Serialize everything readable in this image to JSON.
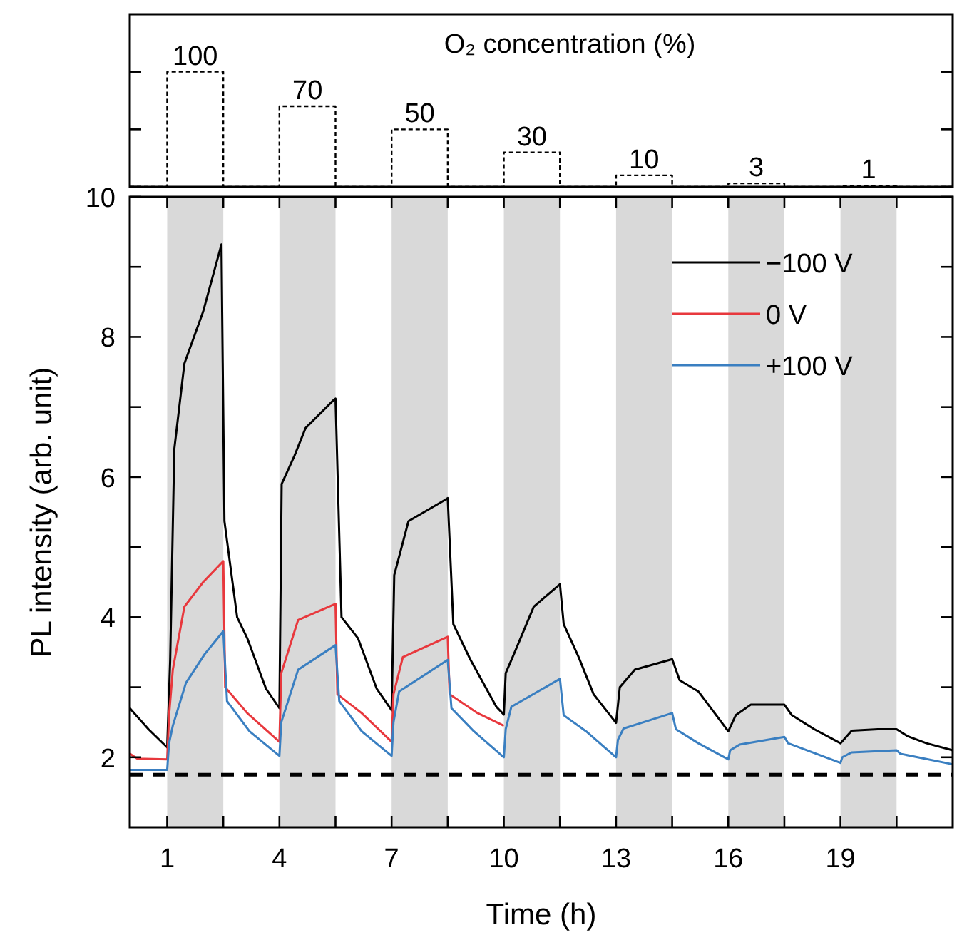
{
  "chart_data": [
    {
      "type": "step",
      "title": "O₂ concentration (%)",
      "x": [
        0,
        1,
        2.5,
        4,
        5.5,
        7,
        8.5,
        10,
        11.5,
        13,
        14.5,
        16,
        17.5,
        19,
        20.5,
        22
      ],
      "values": [
        0,
        100,
        0,
        70,
        0,
        50,
        0,
        30,
        0,
        10,
        0,
        3,
        0,
        1,
        0,
        0
      ],
      "value_labels": [
        null,
        "100",
        null,
        "70",
        null,
        "50",
        null,
        "30",
        null,
        "10",
        null,
        "3",
        null,
        "1",
        null,
        null
      ],
      "color": "#000000",
      "line_style": "dashed",
      "xlim": [
        0,
        22
      ],
      "ylim": [
        0,
        150
      ],
      "yticks": [
        {
          "value": 0,
          "label": null
        },
        {
          "value": 50,
          "label": null
        },
        {
          "value": 100,
          "label": null
        }
      ]
    },
    {
      "type": "line",
      "xlabel": "Time (h)",
      "ylabel": "PL intensity (arb. unit)",
      "xlim": [
        0,
        22
      ],
      "ylim": [
        1,
        10
      ],
      "xticks": [
        1,
        {
          "value": 2.5,
          "label": null
        },
        4,
        {
          "value": 5.5,
          "label": null
        },
        7,
        {
          "value": 8.5,
          "label": null
        },
        10,
        {
          "value": 11.5,
          "label": null
        },
        13,
        {
          "value": 14.5,
          "label": null
        },
        16,
        {
          "value": 17.5,
          "label": null
        },
        19,
        {
          "value": 20.5,
          "label": null
        }
      ],
      "yticks": [
        2,
        {
          "value": 3,
          "label": null
        },
        4,
        {
          "value": 5,
          "label": null
        },
        6,
        {
          "value": 7,
          "label": null
        },
        8,
        {
          "value": 9,
          "label": null
        },
        10
      ],
      "legend": "top right",
      "grid": false,
      "bands": [
        {
          "axis": "x",
          "from": 1,
          "to": 2.5,
          "color": "#d9d9d9"
        },
        {
          "axis": "x",
          "from": 4,
          "to": 5.5,
          "color": "#d9d9d9"
        },
        {
          "axis": "x",
          "from": 7,
          "to": 8.5,
          "color": "#d9d9d9"
        },
        {
          "axis": "x",
          "from": 10,
          "to": 11.5,
          "color": "#d9d9d9"
        },
        {
          "axis": "x",
          "from": 13,
          "to": 14.5,
          "color": "#d9d9d9"
        },
        {
          "axis": "x",
          "from": 16,
          "to": 17.5,
          "color": "#d9d9d9"
        },
        {
          "axis": "x",
          "from": 19,
          "to": 20.5,
          "color": "#d9d9d9"
        }
      ],
      "ref_lines": [
        {
          "axis": "y",
          "value": 1.75,
          "color": "#000000",
          "line_style": "dashed"
        }
      ],
      "series": [
        {
          "name": "−100 V",
          "color": "#000000",
          "x": [
            0,
            0.5,
            1,
            1.08,
            1.19,
            1.46,
            1.96,
            2.45,
            2.53,
            2.87,
            3.14,
            3.64,
            4,
            4.06,
            4.4,
            4.7,
            5.45,
            5.5,
            5.66,
            6.1,
            6.6,
            7,
            7.07,
            7.45,
            8.45,
            8.5,
            8.65,
            9.1,
            9.8,
            10,
            10.05,
            10.3,
            10.8,
            11.5,
            11.6,
            12.0,
            12.4,
            13,
            13.1,
            13.5,
            14.5,
            14.7,
            15.2,
            16,
            16.2,
            16.6,
            17.5,
            17.7,
            18.3,
            19,
            19.3,
            20,
            20.5,
            20.8,
            21.3,
            22
          ],
          "values": [
            2.7,
            2.4,
            2.14,
            3.39,
            6.4,
            7.62,
            8.36,
            9.32,
            5.37,
            4.0,
            3.7,
            2.98,
            2.7,
            5.9,
            6.3,
            6.7,
            7.1,
            7.12,
            4.0,
            3.7,
            2.98,
            2.67,
            4.6,
            5.37,
            5.68,
            5.7,
            3.9,
            3.4,
            2.72,
            2.61,
            3.2,
            3.51,
            4.15,
            4.47,
            3.9,
            3.43,
            2.9,
            2.49,
            3.0,
            3.25,
            3.4,
            3.1,
            2.94,
            2.37,
            2.6,
            2.75,
            2.75,
            2.6,
            2.4,
            2.2,
            2.38,
            2.4,
            2.4,
            2.3,
            2.2,
            2.1
          ]
        },
        {
          "name": "0 V",
          "color": "#e8383d",
          "x": [
            0,
            0.2,
            1,
            1.05,
            1.15,
            1.46,
            1.96,
            2.5,
            2.55,
            3.14,
            4,
            4.05,
            4.5,
            5.5,
            5.55,
            6.2,
            7,
            7.05,
            7.3,
            8.5,
            8.55,
            9.3,
            10
          ],
          "values": [
            2.05,
            1.98,
            1.97,
            2.6,
            3.25,
            4.15,
            4.5,
            4.8,
            3.0,
            2.63,
            2.22,
            3.2,
            3.96,
            4.19,
            2.9,
            2.63,
            2.22,
            2.9,
            3.43,
            3.72,
            2.9,
            2.63,
            2.45
          ]
        },
        {
          "name": "+100 V",
          "color": "#3a7fc1",
          "x": [
            0,
            1,
            1.05,
            1.15,
            1.5,
            2,
            2.5,
            2.6,
            3.2,
            4,
            4.05,
            4.5,
            5.5,
            5.6,
            6.2,
            7,
            7.05,
            7.2,
            8.5,
            8.6,
            9.2,
            10,
            10.05,
            10.2,
            11.5,
            11.6,
            12.2,
            13,
            13.05,
            13.2,
            14.5,
            14.6,
            15.2,
            16,
            16.05,
            16.3,
            17.5,
            17.6,
            18.3,
            19,
            19.05,
            19.3,
            20.5,
            20.6,
            22
          ],
          "values": [
            1.82,
            1.82,
            2.2,
            2.45,
            3.06,
            3.47,
            3.8,
            2.8,
            2.37,
            2.02,
            2.5,
            3.25,
            3.6,
            2.8,
            2.37,
            2.02,
            2.5,
            2.94,
            3.39,
            2.7,
            2.37,
            2.0,
            2.4,
            2.72,
            3.12,
            2.6,
            2.37,
            2.0,
            2.25,
            2.41,
            2.63,
            2.4,
            2.2,
            1.97,
            2.1,
            2.18,
            2.29,
            2.2,
            2.06,
            1.92,
            2.0,
            2.07,
            2.1,
            2.05,
            1.9
          ]
        }
      ]
    }
  ]
}
